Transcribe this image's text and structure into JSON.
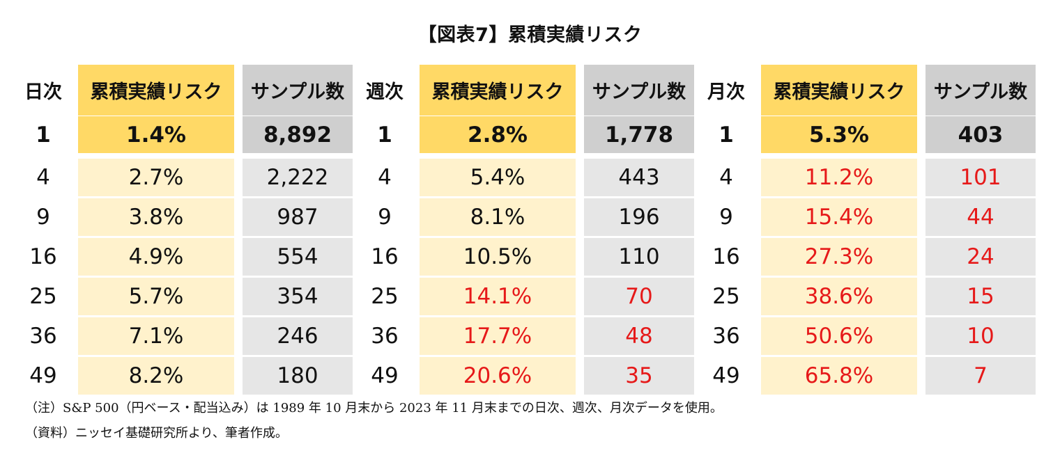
{
  "title": "【図表7】累積実績リスク",
  "panels": [
    {
      "header": {
        "period": "日次",
        "risk": "累積実績リスク",
        "samples": "サンプル数"
      },
      "rows": [
        {
          "n": "1",
          "risk": "1.4%",
          "samples": "8,892",
          "red": false
        },
        {
          "n": "4",
          "risk": "2.7%",
          "samples": "2,222",
          "red": false
        },
        {
          "n": "9",
          "risk": "3.8%",
          "samples": "987",
          "red": false
        },
        {
          "n": "16",
          "risk": "4.9%",
          "samples": "554",
          "red": false
        },
        {
          "n": "25",
          "risk": "5.7%",
          "samples": "354",
          "red": false
        },
        {
          "n": "36",
          "risk": "7.1%",
          "samples": "246",
          "red": false
        },
        {
          "n": "49",
          "risk": "8.2%",
          "samples": "180",
          "red": false
        }
      ]
    },
    {
      "header": {
        "period": "週次",
        "risk": "累積実績リスク",
        "samples": "サンプル数"
      },
      "rows": [
        {
          "n": "1",
          "risk": "2.8%",
          "samples": "1,778",
          "red": false
        },
        {
          "n": "4",
          "risk": "5.4%",
          "samples": "443",
          "red": false
        },
        {
          "n": "9",
          "risk": "8.1%",
          "samples": "196",
          "red": false
        },
        {
          "n": "16",
          "risk": "10.5%",
          "samples": "110",
          "red": false
        },
        {
          "n": "25",
          "risk": "14.1%",
          "samples": "70",
          "red": true
        },
        {
          "n": "36",
          "risk": "17.7%",
          "samples": "48",
          "red": true
        },
        {
          "n": "49",
          "risk": "20.6%",
          "samples": "35",
          "red": true
        }
      ]
    },
    {
      "header": {
        "period": "月次",
        "risk": "累積実績リスク",
        "samples": "サンプル数"
      },
      "rows": [
        {
          "n": "1",
          "risk": "5.3%",
          "samples": "403",
          "red": false
        },
        {
          "n": "4",
          "risk": "11.2%",
          "samples": "101",
          "red": true
        },
        {
          "n": "9",
          "risk": "15.4%",
          "samples": "44",
          "red": true
        },
        {
          "n": "16",
          "risk": "27.3%",
          "samples": "24",
          "red": true
        },
        {
          "n": "25",
          "risk": "38.6%",
          "samples": "15",
          "red": true
        },
        {
          "n": "36",
          "risk": "50.6%",
          "samples": "10",
          "red": true
        },
        {
          "n": "49",
          "risk": "65.8%",
          "samples": "7",
          "red": true
        }
      ]
    }
  ],
  "notes": {
    "note1": "（注）S&P 500（円ベース・配当込み）は 1989 年 10 月末から 2023 年 11 月末までの日次、週次、月次データを使用。",
    "note2": "（資料）ニッセイ基礎研究所より、筆者作成。"
  },
  "colors": {
    "header_risk": "#ffd966",
    "header_samples": "#cfcfcf",
    "body_risk": "#fff2cc",
    "body_samples": "#e6e6e6",
    "red_text": "#e61919"
  }
}
